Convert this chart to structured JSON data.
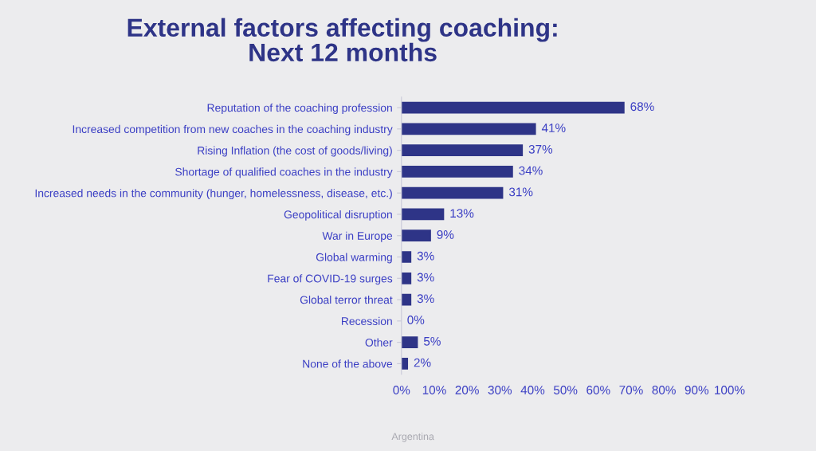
{
  "chart_data": {
    "type": "bar",
    "orientation": "horizontal",
    "title": "External factors affecting coaching:\nNext 12 months",
    "categories": [
      "Reputation of the coaching profession",
      "Increased competition from new coaches in the coaching industry",
      "Rising Inflation (the cost of goods/living)",
      "Shortage of qualified coaches in the industry",
      "Increased needs in the community (hunger, homelessness, disease, etc.)",
      "Geopolitical disruption",
      "War in Europe",
      "Global warming",
      "Fear of COVID-19 surges",
      "Global terror threat",
      "Recession",
      "Other",
      "None of the above"
    ],
    "values": [
      68,
      41,
      37,
      34,
      31,
      13,
      9,
      3,
      3,
      3,
      0,
      5,
      2
    ],
    "value_labels": [
      "68%",
      "41%",
      "37%",
      "34%",
      "31%",
      "13%",
      "9%",
      "3%",
      "3%",
      "3%",
      "0%",
      "5%",
      "2%"
    ],
    "color": "#2e3487",
    "xlim": [
      0,
      100
    ],
    "xticks": [
      {
        "value": 0,
        "label": "0%"
      },
      {
        "value": 10,
        "label": "10%"
      },
      {
        "value": 20,
        "label": "20%"
      },
      {
        "value": 30,
        "label": "30%"
      },
      {
        "value": 40,
        "label": "40%"
      },
      {
        "value": 50,
        "label": "50%"
      },
      {
        "value": 60,
        "label": "60%"
      },
      {
        "value": 70,
        "label": "70%"
      },
      {
        "value": 80,
        "label": "80%"
      },
      {
        "value": 90,
        "label": "90%"
      },
      {
        "value": 100,
        "label": "100%"
      }
    ],
    "grid": false,
    "annotations": [
      "Argentina"
    ]
  }
}
